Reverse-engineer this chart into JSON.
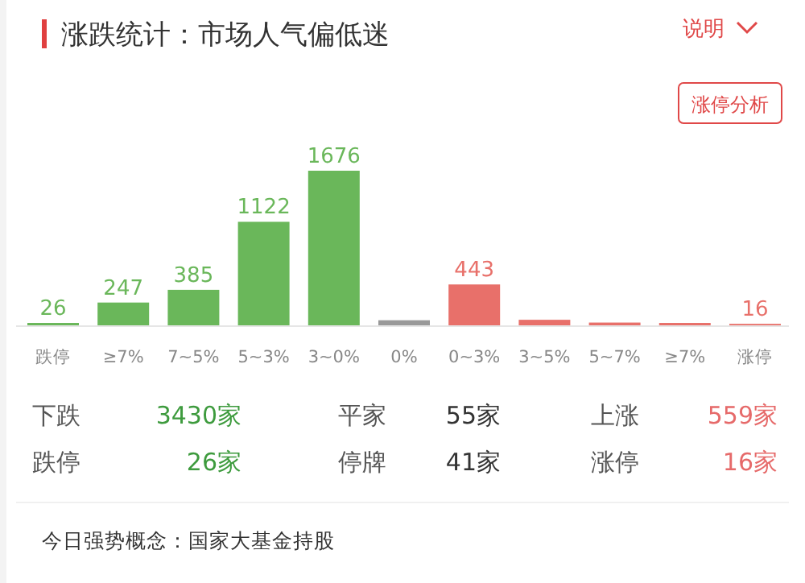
{
  "chart_data": {
    "type": "bar",
    "title": "涨跌统计：市场人气偏低迷",
    "categories": [
      "跌停",
      "≥7%",
      "7~5%",
      "5~3%",
      "3~0%",
      "0%",
      "0~3%",
      "3~5%",
      "5~7%",
      "≥7%",
      "涨停"
    ],
    "values": [
      26,
      247,
      385,
      1122,
      1676,
      55,
      443,
      60,
      30,
      26,
      16
    ],
    "value_labels": [
      "26",
      "247",
      "385",
      "1122",
      "1676",
      null,
      "443",
      null,
      null,
      null,
      "16"
    ],
    "colors": [
      "#6ab75a",
      "#6ab75a",
      "#6ab75a",
      "#6ab75a",
      "#6ab75a",
      "#999999",
      "#e8706a",
      "#e8706a",
      "#e8706a",
      "#e8706a",
      "#e8706a"
    ],
    "annotations": [
      "说明",
      "涨停分析",
      "下跌",
      "3430家",
      "平家",
      "55家",
      "上涨",
      "559家",
      "跌停",
      "26家",
      "停牌",
      "41家",
      "涨停",
      "16家",
      "今日强势概念：国家大基金持股"
    ]
  }
}
